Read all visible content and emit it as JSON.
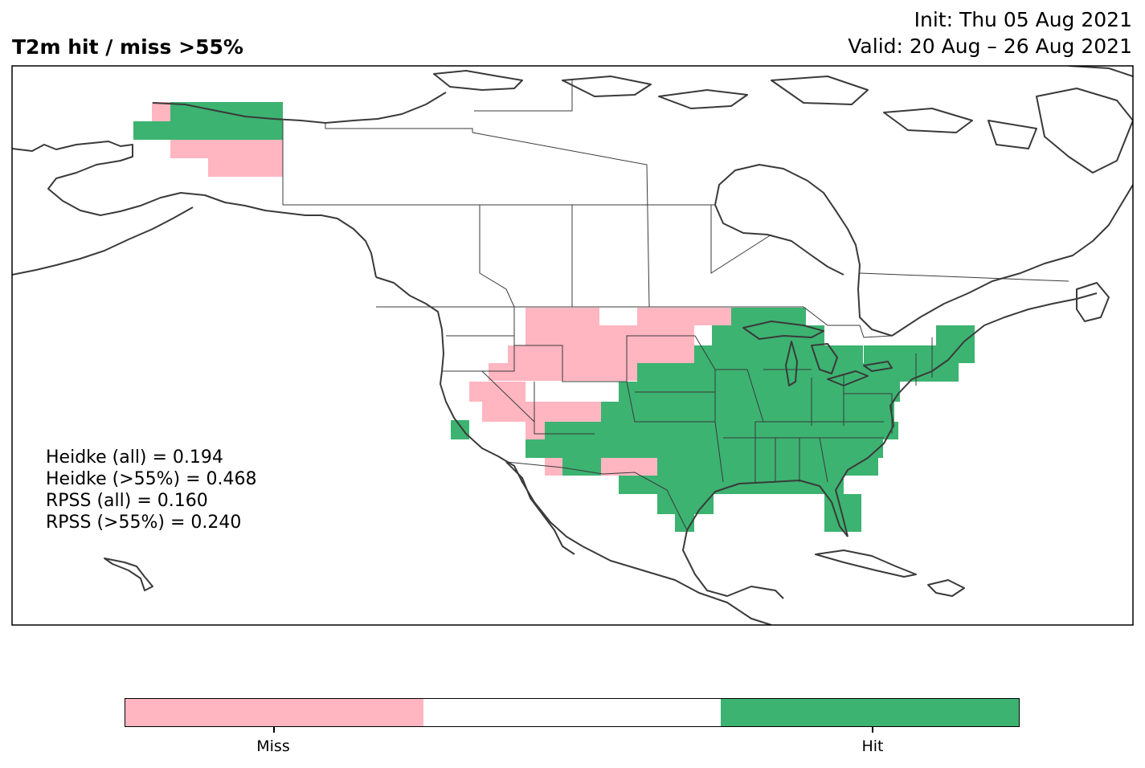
{
  "header": {
    "title": "T2m hit / miss  >55%",
    "init": "Init: Thu 05 Aug 2021",
    "valid": "Valid: 20 Aug – 26 Aug 2021"
  },
  "stats": [
    "Heidke (all) = 0.194",
    "Heidke (>55%) = 0.468",
    "RPSS (all) = 0.160",
    "RPSS (>55%) = 0.240"
  ],
  "legend": {
    "miss_label": "Miss",
    "hit_label": "Hit",
    "colors": {
      "miss": "#ffb6c1",
      "neutral": "#ffffff",
      "hit": "#3cb371"
    }
  },
  "map": {
    "categories": [
      "miss",
      "hit"
    ],
    "coastline_color": "#3a3a3a"
  }
}
